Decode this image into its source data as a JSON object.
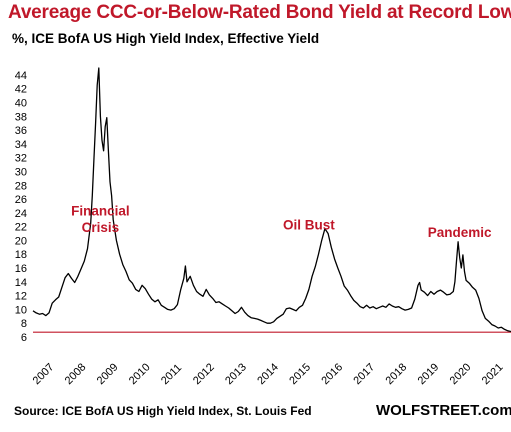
{
  "header": {
    "title": "Avereage CCC-or-Below-Rated  Bond Yield at Record Low",
    "subtitle": "%, ICE BofA US High Yield Index, Effective Yield"
  },
  "footer": {
    "source": "Source: ICE BofA US High Yield Index, St. Louis Fed",
    "brand": "WOLFSTREET.com"
  },
  "colors": {
    "title": "#c0182a",
    "line": "#000000",
    "reference_line": "#c0182a",
    "annotation": "#c0182a"
  },
  "chart_data": {
    "type": "line",
    "title": "Avereage CCC-or-Below-Rated  Bond Yield at Record Low",
    "ylabel": "%, ICE BofA US High Yield Index, Effective Yield",
    "xlim": [
      2007.0,
      2021.9
    ],
    "ylim": [
      6,
      45
    ],
    "y_ticks": [
      6,
      8,
      10,
      12,
      14,
      16,
      18,
      20,
      22,
      24,
      26,
      28,
      30,
      32,
      34,
      36,
      38,
      40,
      42,
      44
    ],
    "x_ticks": [
      "2007",
      "2008",
      "2009",
      "2010",
      "2011",
      "2012",
      "2013",
      "2014",
      "2015",
      "2016",
      "2017",
      "2018",
      "2019",
      "2020",
      "2021"
    ],
    "grid": false,
    "reference_line": 6.7,
    "annotations": [
      {
        "text": "Financial",
        "x": 2009.1,
        "y": 23.6
      },
      {
        "text": "Crisis",
        "x": 2009.1,
        "y": 21.2
      },
      {
        "text": "Oil Bust",
        "x": 2015.6,
        "y": 21.6
      },
      {
        "text": "Pandemic",
        "x": 2020.3,
        "y": 20.5
      }
    ],
    "series": [
      {
        "values": [
          [
            2007.0,
            9.8
          ],
          [
            2007.1,
            9.5
          ],
          [
            2007.2,
            9.3
          ],
          [
            2007.3,
            9.4
          ],
          [
            2007.4,
            9.1
          ],
          [
            2007.5,
            9.5
          ],
          [
            2007.6,
            10.9
          ],
          [
            2007.7,
            11.4
          ],
          [
            2007.8,
            11.8
          ],
          [
            2007.9,
            13.2
          ],
          [
            2008.0,
            14.6
          ],
          [
            2008.1,
            15.2
          ],
          [
            2008.2,
            14.5
          ],
          [
            2008.3,
            13.9
          ],
          [
            2008.4,
            14.8
          ],
          [
            2008.5,
            15.9
          ],
          [
            2008.6,
            17.0
          ],
          [
            2008.7,
            18.8
          ],
          [
            2008.8,
            22.5
          ],
          [
            2008.85,
            26.5
          ],
          [
            2008.9,
            32.0
          ],
          [
            2008.95,
            37.0
          ],
          [
            2009.0,
            42.5
          ],
          [
            2009.05,
            45.0
          ],
          [
            2009.1,
            38.0
          ],
          [
            2009.15,
            34.5
          ],
          [
            2009.2,
            33.0
          ],
          [
            2009.25,
            36.5
          ],
          [
            2009.3,
            37.8
          ],
          [
            2009.35,
            33.0
          ],
          [
            2009.4,
            28.5
          ],
          [
            2009.45,
            26.5
          ],
          [
            2009.5,
            23.0
          ],
          [
            2009.6,
            20.0
          ],
          [
            2009.7,
            18.0
          ],
          [
            2009.8,
            16.5
          ],
          [
            2009.9,
            15.5
          ],
          [
            2010.0,
            14.3
          ],
          [
            2010.1,
            13.8
          ],
          [
            2010.2,
            12.9
          ],
          [
            2010.3,
            12.6
          ],
          [
            2010.4,
            13.5
          ],
          [
            2010.5,
            13.0
          ],
          [
            2010.6,
            12.2
          ],
          [
            2010.7,
            11.5
          ],
          [
            2010.8,
            11.1
          ],
          [
            2010.9,
            11.4
          ],
          [
            2011.0,
            10.6
          ],
          [
            2011.1,
            10.3
          ],
          [
            2011.2,
            10.0
          ],
          [
            2011.3,
            9.9
          ],
          [
            2011.4,
            10.1
          ],
          [
            2011.5,
            10.7
          ],
          [
            2011.6,
            12.8
          ],
          [
            2011.7,
            14.5
          ],
          [
            2011.75,
            16.3
          ],
          [
            2011.8,
            14.0
          ],
          [
            2011.9,
            14.8
          ],
          [
            2012.0,
            13.5
          ],
          [
            2012.1,
            12.6
          ],
          [
            2012.2,
            12.2
          ],
          [
            2012.3,
            11.9
          ],
          [
            2012.4,
            12.9
          ],
          [
            2012.5,
            12.1
          ],
          [
            2012.6,
            11.6
          ],
          [
            2012.7,
            11.0
          ],
          [
            2012.8,
            11.1
          ],
          [
            2012.9,
            10.8
          ],
          [
            2013.0,
            10.5
          ],
          [
            2013.1,
            10.2
          ],
          [
            2013.2,
            9.8
          ],
          [
            2013.3,
            9.4
          ],
          [
            2013.4,
            9.7
          ],
          [
            2013.5,
            10.3
          ],
          [
            2013.6,
            9.6
          ],
          [
            2013.7,
            9.1
          ],
          [
            2013.8,
            8.8
          ],
          [
            2013.9,
            8.7
          ],
          [
            2014.0,
            8.6
          ],
          [
            2014.1,
            8.4
          ],
          [
            2014.2,
            8.2
          ],
          [
            2014.3,
            8.0
          ],
          [
            2014.4,
            8.0
          ],
          [
            2014.5,
            8.2
          ],
          [
            2014.6,
            8.7
          ],
          [
            2014.7,
            9.0
          ],
          [
            2014.8,
            9.3
          ],
          [
            2014.9,
            10.1
          ],
          [
            2015.0,
            10.2
          ],
          [
            2015.1,
            10.0
          ],
          [
            2015.2,
            9.8
          ],
          [
            2015.3,
            10.3
          ],
          [
            2015.4,
            10.6
          ],
          [
            2015.5,
            11.6
          ],
          [
            2015.6,
            12.9
          ],
          [
            2015.7,
            14.8
          ],
          [
            2015.8,
            16.2
          ],
          [
            2015.9,
            18.0
          ],
          [
            2016.0,
            20.0
          ],
          [
            2016.1,
            21.7
          ],
          [
            2016.2,
            21.0
          ],
          [
            2016.3,
            19.0
          ],
          [
            2016.4,
            17.3
          ],
          [
            2016.5,
            16.0
          ],
          [
            2016.6,
            14.8
          ],
          [
            2016.7,
            13.4
          ],
          [
            2016.8,
            12.8
          ],
          [
            2016.9,
            12.0
          ],
          [
            2017.0,
            11.3
          ],
          [
            2017.1,
            10.9
          ],
          [
            2017.2,
            10.4
          ],
          [
            2017.3,
            10.2
          ],
          [
            2017.4,
            10.6
          ],
          [
            2017.5,
            10.2
          ],
          [
            2017.6,
            10.4
          ],
          [
            2017.7,
            10.1
          ],
          [
            2017.8,
            10.3
          ],
          [
            2017.9,
            10.5
          ],
          [
            2018.0,
            10.3
          ],
          [
            2018.1,
            10.8
          ],
          [
            2018.2,
            10.5
          ],
          [
            2018.3,
            10.3
          ],
          [
            2018.4,
            10.4
          ],
          [
            2018.5,
            10.1
          ],
          [
            2018.6,
            9.9
          ],
          [
            2018.7,
            10.0
          ],
          [
            2018.8,
            10.2
          ],
          [
            2018.9,
            11.5
          ],
          [
            2019.0,
            13.5
          ],
          [
            2019.05,
            13.9
          ],
          [
            2019.1,
            12.8
          ],
          [
            2019.2,
            12.5
          ],
          [
            2019.3,
            12.0
          ],
          [
            2019.4,
            12.6
          ],
          [
            2019.5,
            12.2
          ],
          [
            2019.6,
            12.6
          ],
          [
            2019.7,
            12.8
          ],
          [
            2019.8,
            12.5
          ],
          [
            2019.9,
            12.1
          ],
          [
            2020.0,
            12.2
          ],
          [
            2020.1,
            12.6
          ],
          [
            2020.15,
            14.0
          ],
          [
            2020.2,
            17.0
          ],
          [
            2020.25,
            19.8
          ],
          [
            2020.3,
            17.5
          ],
          [
            2020.35,
            16.0
          ],
          [
            2020.4,
            17.9
          ],
          [
            2020.45,
            15.5
          ],
          [
            2020.5,
            14.2
          ],
          [
            2020.6,
            13.8
          ],
          [
            2020.7,
            13.2
          ],
          [
            2020.8,
            12.8
          ],
          [
            2020.9,
            11.6
          ],
          [
            2021.0,
            9.8
          ],
          [
            2021.1,
            8.7
          ],
          [
            2021.2,
            8.3
          ],
          [
            2021.3,
            7.8
          ],
          [
            2021.4,
            7.6
          ],
          [
            2021.5,
            7.3
          ],
          [
            2021.6,
            7.4
          ],
          [
            2021.7,
            7.1
          ],
          [
            2021.8,
            6.9
          ],
          [
            2021.9,
            6.8
          ]
        ]
      }
    ]
  }
}
